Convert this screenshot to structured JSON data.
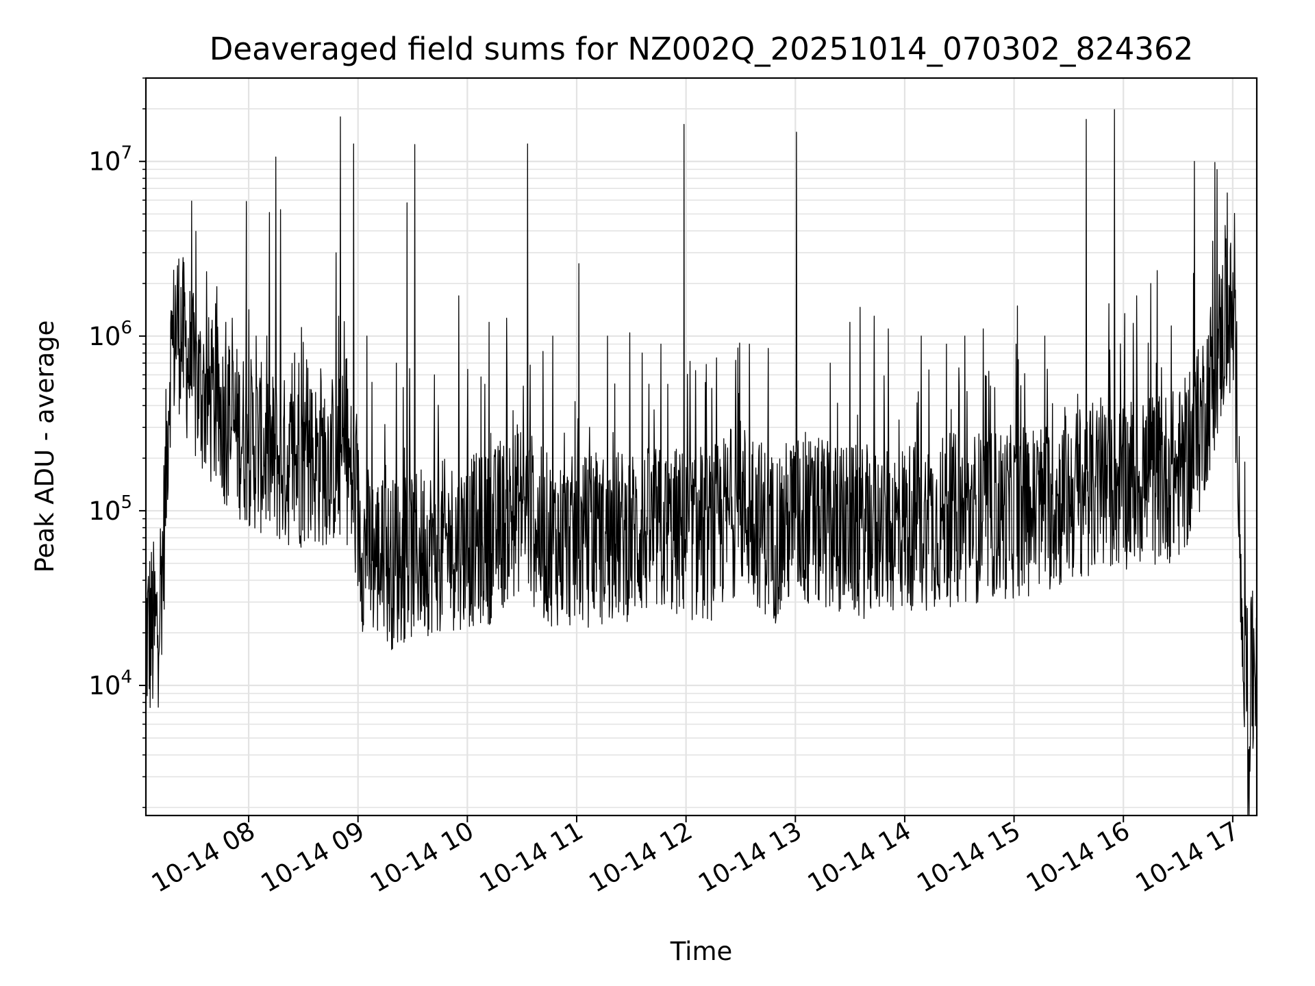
{
  "chart_data": {
    "type": "line",
    "title": "Deaveraged field sums for NZ002Q_20251014_070302_824362",
    "xlabel": "Time",
    "ylabel": "Peak ADU - average",
    "yscale": "log",
    "ylim": [
      1800,
      30000000
    ],
    "xlim_hours": [
      7.06,
      17.22
    ],
    "grid": true,
    "line_color": "#000000",
    "grid_color": "#e3e3e3",
    "x_ticks": [
      {
        "hour": 8,
        "label": "10-14 08"
      },
      {
        "hour": 9,
        "label": "10-14 09"
      },
      {
        "hour": 10,
        "label": "10-14 10"
      },
      {
        "hour": 11,
        "label": "10-14 11"
      },
      {
        "hour": 12,
        "label": "10-14 12"
      },
      {
        "hour": 13,
        "label": "10-14 13"
      },
      {
        "hour": 14,
        "label": "10-14 14"
      },
      {
        "hour": 15,
        "label": "10-14 15"
      },
      {
        "hour": 16,
        "label": "10-14 16"
      },
      {
        "hour": 17,
        "label": "10-14 17"
      }
    ],
    "y_ticks": [
      {
        "value": 10000,
        "base": "10",
        "exp": "4"
      },
      {
        "value": 100000,
        "base": "10",
        "exp": "5"
      },
      {
        "value": 1000000,
        "base": "10",
        "exp": "6"
      },
      {
        "value": 10000000,
        "base": "10",
        "exp": "7"
      }
    ],
    "series": [
      {
        "name": "Peak ADU - average",
        "sampling": "approximate envelope of a dense, noisy series",
        "baseline": [
          [
            7.06,
            20000
          ],
          [
            7.16,
            20000
          ],
          [
            7.22,
            60000
          ],
          [
            7.28,
            700000
          ],
          [
            7.35,
            1200000
          ],
          [
            7.5,
            550000
          ],
          [
            7.75,
            350000
          ],
          [
            8.0,
            250000
          ],
          [
            8.3,
            190000
          ],
          [
            8.6,
            190000
          ],
          [
            8.9,
            200000
          ],
          [
            9.05,
            60000
          ],
          [
            9.3,
            50000
          ],
          [
            9.6,
            60000
          ],
          [
            9.9,
            65000
          ],
          [
            10.2,
            70000
          ],
          [
            10.5,
            110000
          ],
          [
            10.7,
            70000
          ],
          [
            11.0,
            65000
          ],
          [
            11.3,
            70000
          ],
          [
            11.6,
            75000
          ],
          [
            11.9,
            75000
          ],
          [
            12.2,
            70000
          ],
          [
            12.5,
            110000
          ],
          [
            12.8,
            70000
          ],
          [
            13.0,
            90000
          ],
          [
            13.3,
            80000
          ],
          [
            13.6,
            75000
          ],
          [
            13.9,
            80000
          ],
          [
            14.2,
            85000
          ],
          [
            14.5,
            90000
          ],
          [
            14.8,
            95000
          ],
          [
            15.1,
            100000
          ],
          [
            15.4,
            110000
          ],
          [
            15.6,
            130000
          ],
          [
            15.9,
            140000
          ],
          [
            16.2,
            150000
          ],
          [
            16.5,
            160000
          ],
          [
            16.65,
            220000
          ],
          [
            16.8,
            550000
          ],
          [
            16.95,
            1300000
          ],
          [
            17.0,
            1200000
          ],
          [
            17.05,
            300000
          ],
          [
            17.08,
            25000
          ],
          [
            17.12,
            12000
          ],
          [
            17.16,
            8000
          ],
          [
            17.22,
            18000
          ]
        ],
        "spikes": [
          [
            7.29,
            1400000
          ],
          [
            7.33,
            1950000
          ],
          [
            7.38,
            1900000
          ],
          [
            7.52,
            950000
          ],
          [
            7.66,
            1100000
          ],
          [
            7.79,
            1200000
          ],
          [
            7.98,
            5900000
          ],
          [
            8.07,
            1000000
          ],
          [
            8.19,
            5100000
          ],
          [
            8.25,
            10600000
          ],
          [
            8.29,
            5300000
          ],
          [
            8.46,
            700000
          ],
          [
            8.66,
            650000
          ],
          [
            8.8,
            3000000
          ],
          [
            8.84,
            18000000
          ],
          [
            8.96,
            12600000
          ],
          [
            9.08,
            1000000
          ],
          [
            9.35,
            700000
          ],
          [
            9.45,
            5800000
          ],
          [
            9.52,
            12500000
          ],
          [
            9.7,
            600000
          ],
          [
            9.92,
            1700000
          ],
          [
            10.2,
            1200000
          ],
          [
            10.55,
            12600000
          ],
          [
            10.78,
            1000000
          ],
          [
            11.02,
            2600000
          ],
          [
            11.28,
            1000000
          ],
          [
            11.6,
            800000
          ],
          [
            11.77,
            900000
          ],
          [
            11.98,
            16300000
          ],
          [
            12.28,
            750000
          ],
          [
            12.58,
            900000
          ],
          [
            12.75,
            850000
          ],
          [
            13.01,
            14700000
          ],
          [
            13.32,
            700000
          ],
          [
            13.5,
            1200000
          ],
          [
            13.72,
            1300000
          ],
          [
            13.85,
            1100000
          ],
          [
            14.15,
            1000000
          ],
          [
            14.38,
            900000
          ],
          [
            14.55,
            1000000
          ],
          [
            14.72,
            1100000
          ],
          [
            15.02,
            900000
          ],
          [
            15.28,
            1000000
          ],
          [
            15.66,
            17400000
          ],
          [
            15.92,
            19800000
          ],
          [
            16.12,
            1700000
          ],
          [
            16.3,
            700000
          ],
          [
            16.65,
            10000000
          ],
          [
            16.93,
            4300000
          ],
          [
            17.11,
            190000
          ]
        ]
      }
    ]
  }
}
